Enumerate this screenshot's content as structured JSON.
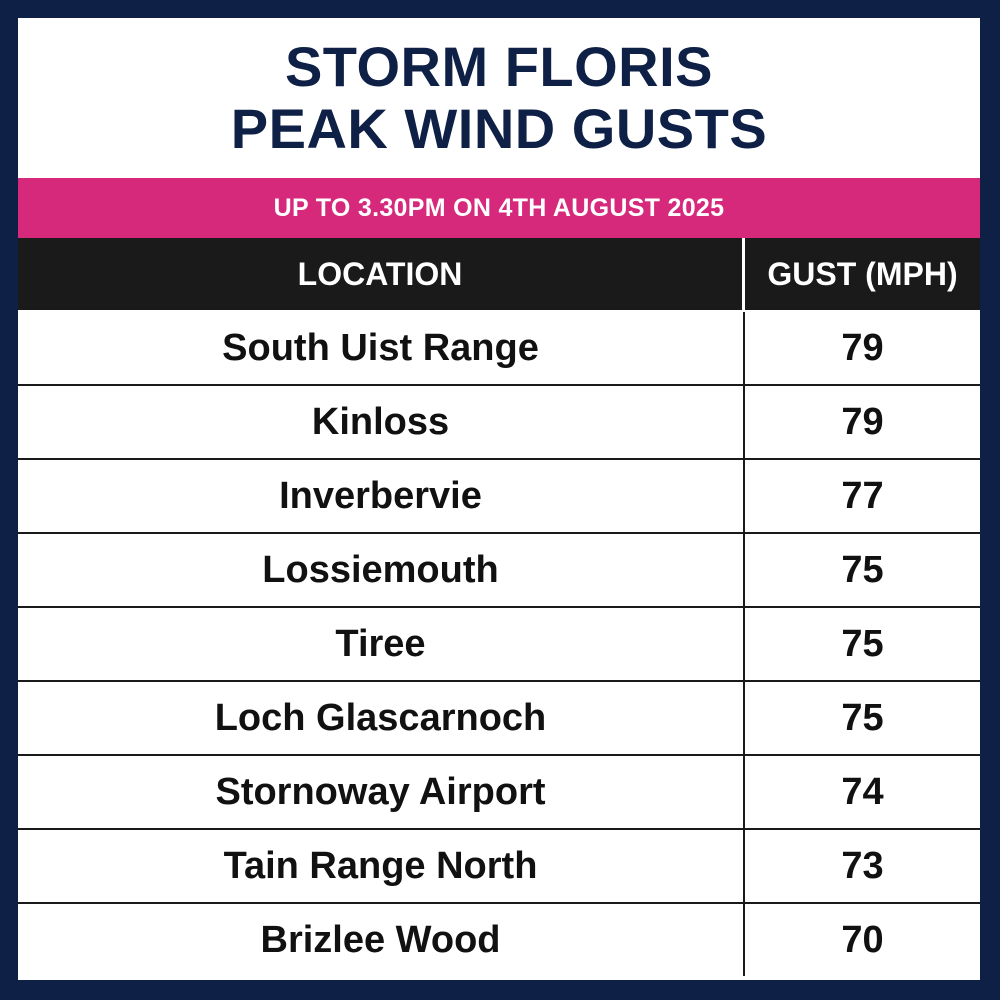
{
  "header": {
    "title_line1": "STORM FLORIS",
    "title_line2": "PEAK WIND GUSTS",
    "subtitle": "UP TO 3.30PM ON 4TH AUGUST 2025"
  },
  "colors": {
    "border": "#0e2046",
    "title_text": "#0e2046",
    "subtitle_bar": "#d6297c",
    "table_header_bg": "#1a1a1a"
  },
  "chart_data": {
    "type": "table",
    "columns": [
      "LOCATION",
      "GUST (MPH)"
    ],
    "rows": [
      {
        "location": "South Uist Range",
        "gust": "79"
      },
      {
        "location": "Kinloss",
        "gust": "79"
      },
      {
        "location": "Inverbervie",
        "gust": "77"
      },
      {
        "location": "Lossiemouth",
        "gust": "75"
      },
      {
        "location": "Tiree",
        "gust": "75"
      },
      {
        "location": "Loch Glascarnoch",
        "gust": "75"
      },
      {
        "location": "Stornoway Airport",
        "gust": "74"
      },
      {
        "location": "Tain Range North",
        "gust": "73"
      },
      {
        "location": "Brizlee Wood",
        "gust": "70"
      }
    ]
  }
}
